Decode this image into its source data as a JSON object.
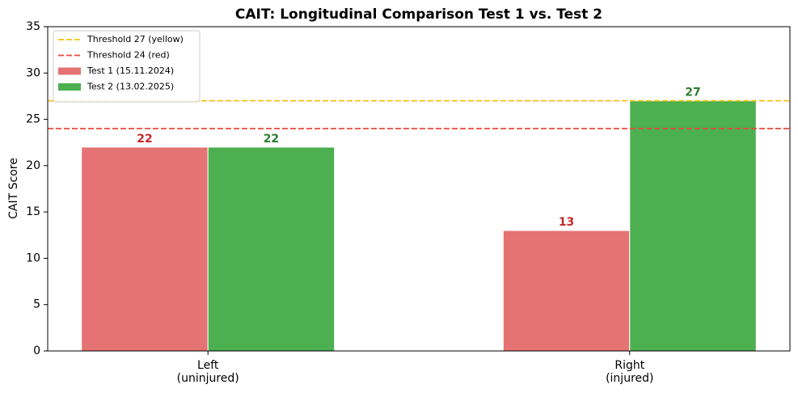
{
  "chart_data": {
    "type": "bar",
    "title": "CAIT: Longitudinal Comparison Test 1 vs. Test 2",
    "y_label": "CAIT Score",
    "categories": [
      "Left\n(uninjured)",
      "Right\n(injured)"
    ],
    "series": [
      {
        "name": "Test 1 (15.11.2024)",
        "color": "#e57373",
        "label_color": "#c62828",
        "values": [
          22,
          13
        ]
      },
      {
        "name": "Test 2 (13.02.2025)",
        "color": "#4caf50",
        "label_color": "#2e7d32",
        "values": [
          22,
          27
        ]
      }
    ],
    "thresholds": [
      {
        "name": "Threshold 27 (yellow)",
        "value": 27,
        "color": "#f5c211"
      },
      {
        "name": "Threshold 24 (red)",
        "value": 24,
        "color": "#e74c3c"
      }
    ],
    "ylim": [
      0,
      35
    ],
    "yticks": [
      0,
      5,
      10,
      15,
      20,
      25,
      30,
      35
    ],
    "grid": false,
    "legend": "upper-left"
  }
}
